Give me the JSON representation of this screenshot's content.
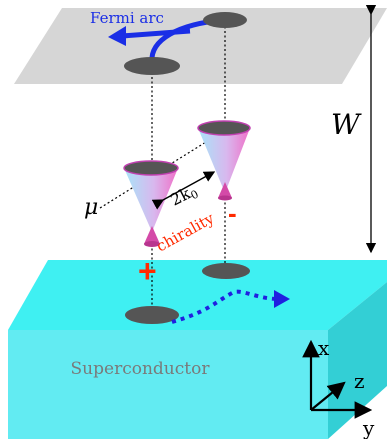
{
  "labels": {
    "fermi_arc": "Fermi arc",
    "width": "W",
    "two_k0": "2k",
    "two_k0_sub": "0",
    "mu": "μ",
    "chirality": "chirality",
    "plus": "+",
    "minus": "-",
    "superconductor": "Superconductor",
    "axis_x": "x",
    "axis_y": "y",
    "axis_z": "z"
  },
  "colors": {
    "top_plane": "#d6d6d6",
    "superconductor_top": "#3ff0f2",
    "superconductor_front": "#5eeaf1",
    "superconductor_side": "#32c9cf",
    "fermi_arc": "#1a2ee6",
    "surface_state": "#2020e0",
    "chirality_text": "#ff2a00",
    "cone_pink": "#f070c8",
    "cone_blue": "#a8e4f8",
    "node_disk": "#555555"
  }
}
